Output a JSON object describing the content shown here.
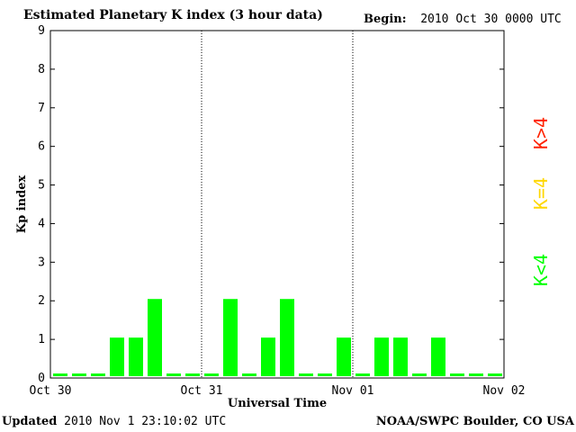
{
  "header": {
    "title": "Estimated Planetary K index (3 hour data)",
    "begin_label": "Begin:",
    "begin_value": "2010 Oct 30 0000 UTC"
  },
  "footer": {
    "updated_label": "Updated",
    "updated_value": "2010 Nov  1 23:10:02 UTC",
    "source": "NOAA/SWPC Boulder, CO USA"
  },
  "legend": [
    {
      "label": "K<4",
      "color": "#00ff00"
    },
    {
      "label": "K=4",
      "color": "#ffd700"
    },
    {
      "label": "K>4",
      "color": "#ff2200"
    }
  ],
  "chart_data": {
    "type": "bar",
    "title": "Estimated Planetary K index (3 hour data)",
    "xlabel": "Universal Time",
    "ylabel": "Kp index",
    "ylim": [
      0,
      9
    ],
    "y_ticks": [
      "0",
      "1",
      "2",
      "3",
      "4",
      "5",
      "6",
      "7",
      "8",
      "9"
    ],
    "x_tick_labels": [
      "Oct 30",
      "Oct 31",
      "Nov 01",
      "Nov 02"
    ],
    "day_separators": [
      "Oct 31",
      "Nov 01"
    ],
    "bar_color": "#00ff00",
    "series": [
      {
        "values": [
          0,
          0,
          0,
          1,
          1,
          2,
          0,
          0,
          0,
          2,
          0,
          1,
          2,
          0,
          0,
          1,
          0,
          1,
          1,
          0,
          1,
          0,
          0,
          0
        ]
      }
    ]
  }
}
